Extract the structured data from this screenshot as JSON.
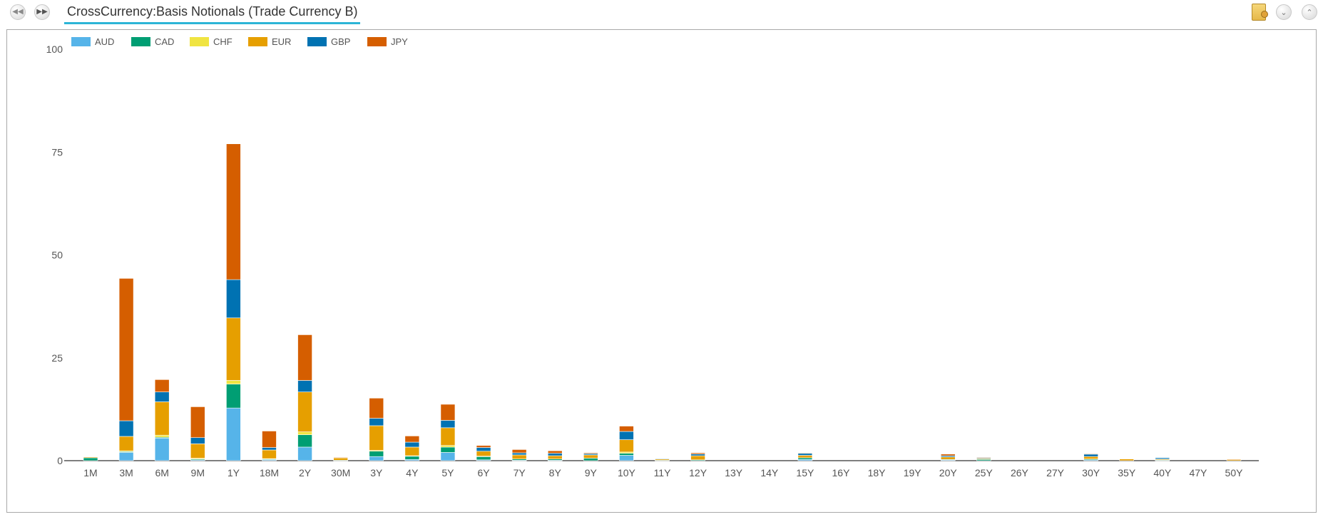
{
  "header": {
    "title": "CrossCurrency:Basis Notionals (Trade Currency B)",
    "prev_icon": "rewind-icon",
    "next_icon": "fast-forward-icon",
    "right_icons": [
      "folder-export-icon",
      "collapse-icon",
      "expand-up-icon"
    ]
  },
  "chart_data": {
    "type": "bar",
    "stacked": true,
    "title": "",
    "xlabel": "",
    "ylabel": "",
    "ylim": [
      0,
      100
    ],
    "yticks": [
      0,
      25,
      50,
      75,
      100
    ],
    "grid": false,
    "legend_position": "top-left",
    "categories": [
      "1M",
      "3M",
      "6M",
      "9M",
      "1Y",
      "18M",
      "2Y",
      "30M",
      "3Y",
      "4Y",
      "5Y",
      "6Y",
      "7Y",
      "8Y",
      "9Y",
      "10Y",
      "11Y",
      "12Y",
      "13Y",
      "14Y",
      "15Y",
      "16Y",
      "18Y",
      "19Y",
      "20Y",
      "25Y",
      "26Y",
      "27Y",
      "30Y",
      "35Y",
      "40Y",
      "47Y",
      "50Y"
    ],
    "series": [
      {
        "name": "AUD",
        "color": "#56B4E9",
        "values": [
          0.0,
          2.0,
          5.5,
          0.2,
          12.8,
          0.2,
          3.3,
          0.0,
          1.0,
          0.3,
          2.0,
          0.2,
          0.1,
          0.1,
          0.0,
          1.3,
          0.0,
          0.0,
          0,
          0,
          0.3,
          0,
          0,
          0,
          0.2,
          0.0,
          0,
          0,
          0.2,
          0.0,
          0.1,
          0,
          0.0
        ]
      },
      {
        "name": "CAD",
        "color": "#009E73",
        "values": [
          0.7,
          0.2,
          0.2,
          0.2,
          5.8,
          0.2,
          3.0,
          0.1,
          1.3,
          0.8,
          1.3,
          0.8,
          0.3,
          0.3,
          0.6,
          0.5,
          0.1,
          0.2,
          0,
          0,
          0.4,
          0,
          0,
          0,
          0.1,
          0.3,
          0,
          0,
          0.2,
          0.0,
          0.1,
          0,
          0.0
        ]
      },
      {
        "name": "CHF",
        "color": "#F0E442",
        "values": [
          0.0,
          0.2,
          0.5,
          0.2,
          0.9,
          0.1,
          0.7,
          0.0,
          0.2,
          0.1,
          0.4,
          0.1,
          0.0,
          0.0,
          0.0,
          0.3,
          0.0,
          0.0,
          0,
          0,
          0.0,
          0,
          0,
          0,
          0.0,
          0.0,
          0,
          0,
          0.0,
          0.0,
          0.0,
          0,
          0.0
        ]
      },
      {
        "name": "EUR",
        "color": "#E69F00",
        "values": [
          0.2,
          3.5,
          8.1,
          3.5,
          15.2,
          2.1,
          9.7,
          0.6,
          6.0,
          2.1,
          4.3,
          1.2,
          1.0,
          0.8,
          0.8,
          3.0,
          0.3,
          1.0,
          0,
          0,
          0.6,
          0,
          0,
          0,
          0.6,
          0.2,
          0,
          0,
          0.6,
          0.4,
          0.2,
          0,
          0.3
        ]
      },
      {
        "name": "GBP",
        "color": "#0072B2",
        "values": [
          0.0,
          3.8,
          2.4,
          1.5,
          9.3,
          0.6,
          2.8,
          0.0,
          1.8,
          1.2,
          1.8,
          0.9,
          0.5,
          0.6,
          0.3,
          2.0,
          0.1,
          0.4,
          0,
          0,
          0.5,
          0,
          0,
          0,
          0.3,
          0.2,
          0,
          0,
          0.6,
          0.0,
          0.3,
          0,
          0.0
        ]
      },
      {
        "name": "JPY",
        "color": "#D55E00",
        "values": [
          0.0,
          34.6,
          3.0,
          7.5,
          33.0,
          4.0,
          11.1,
          0.1,
          4.9,
          1.5,
          3.9,
          0.5,
          0.8,
          0.6,
          0.2,
          1.3,
          0.0,
          0.3,
          0,
          0,
          0.1,
          0,
          0,
          0,
          0.4,
          0.1,
          0,
          0,
          0.1,
          0.0,
          0.0,
          0,
          0.1
        ]
      }
    ]
  }
}
